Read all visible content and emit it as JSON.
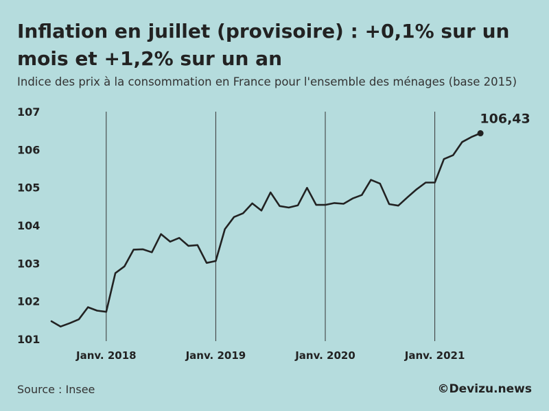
{
  "header": {
    "title": "Inflation en juillet (provisoire) : +0,1% sur un mois et +1,2% sur un an",
    "subtitle": "Indice des prix à la consommation en France pour l'ensemble des ménages (base 2015)"
  },
  "footer": {
    "source": "Source : Insee",
    "credit": "©Devizu.news"
  },
  "colors": {
    "background": "#b5dcdd",
    "line": "#222222",
    "gridline": "#333333"
  },
  "chart_data": {
    "type": "line",
    "title": "Inflation en juillet (provisoire) : +0,1% sur un mois et +1,2% sur un an",
    "subtitle": "Indice des prix à la consommation en France pour l'ensemble des ménages (base 2015)",
    "xlabel": "",
    "ylabel": "",
    "ylim": [
      101,
      107
    ],
    "yticks": [
      101,
      102,
      103,
      104,
      105,
      106,
      107
    ],
    "xlim": [
      0,
      44
    ],
    "xticks": [
      {
        "x": 6,
        "label": "Janv. 2018"
      },
      {
        "x": 18,
        "label": "Janv. 2019"
      },
      {
        "x": 30,
        "label": "Janv. 2020"
      },
      {
        "x": 42,
        "label": "Janv. 2021"
      }
    ],
    "vertical_gridlines_at": [
      6,
      18,
      30,
      42
    ],
    "x_start": "Juil. 2017",
    "x_end": "Juil. 2021",
    "values": [
      101.47,
      101.33,
      101.42,
      101.52,
      101.84,
      101.75,
      101.72,
      102.74,
      102.92,
      103.36,
      103.37,
      103.29,
      103.77,
      103.57,
      103.67,
      103.46,
      103.48,
      103.01,
      103.06,
      103.9,
      104.22,
      104.32,
      104.58,
      104.39,
      104.87,
      104.51,
      104.47,
      104.53,
      104.99,
      104.54,
      104.54,
      104.59,
      104.57,
      104.71,
      104.8,
      105.2,
      105.1,
      104.56,
      104.52,
      104.74,
      104.95,
      105.13,
      105.13,
      105.75,
      105.85,
      106.2,
      106.33,
      106.43
    ],
    "end_label": "106,43"
  }
}
